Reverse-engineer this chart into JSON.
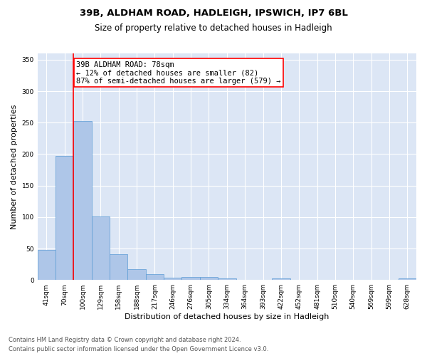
{
  "title1": "39B, ALDHAM ROAD, HADLEIGH, IPSWICH, IP7 6BL",
  "title2": "Size of property relative to detached houses in Hadleigh",
  "xlabel": "Distribution of detached houses by size in Hadleigh",
  "ylabel": "Number of detached properties",
  "bar_labels": [
    "41sqm",
    "70sqm",
    "100sqm",
    "129sqm",
    "158sqm",
    "188sqm",
    "217sqm",
    "246sqm",
    "276sqm",
    "305sqm",
    "334sqm",
    "364sqm",
    "393sqm",
    "422sqm",
    "452sqm",
    "481sqm",
    "510sqm",
    "540sqm",
    "569sqm",
    "599sqm",
    "628sqm"
  ],
  "bar_values": [
    48,
    197,
    252,
    101,
    41,
    17,
    9,
    4,
    5,
    5,
    3,
    0,
    0,
    3,
    0,
    0,
    0,
    0,
    0,
    0,
    3
  ],
  "bar_color": "#aec6e8",
  "bar_edge_color": "#5b9bd5",
  "annotation_text": "39B ALDHAM ROAD: 78sqm\n← 12% of detached houses are smaller (82)\n87% of semi-detached houses are larger (579) →",
  "annotation_box_color": "white",
  "annotation_box_edge_color": "red",
  "vline_color": "red",
  "vline_x": 1.5,
  "ylim": [
    0,
    360
  ],
  "yticks": [
    0,
    50,
    100,
    150,
    200,
    250,
    300,
    350
  ],
  "background_color": "#dce6f5",
  "grid_color": "white",
  "footer_line1": "Contains HM Land Registry data © Crown copyright and database right 2024.",
  "footer_line2": "Contains public sector information licensed under the Open Government Licence v3.0.",
  "title1_fontsize": 9.5,
  "title2_fontsize": 8.5,
  "xlabel_fontsize": 8,
  "ylabel_fontsize": 8,
  "tick_fontsize": 6.5,
  "annotation_fontsize": 7.5,
  "footer_fontsize": 6
}
